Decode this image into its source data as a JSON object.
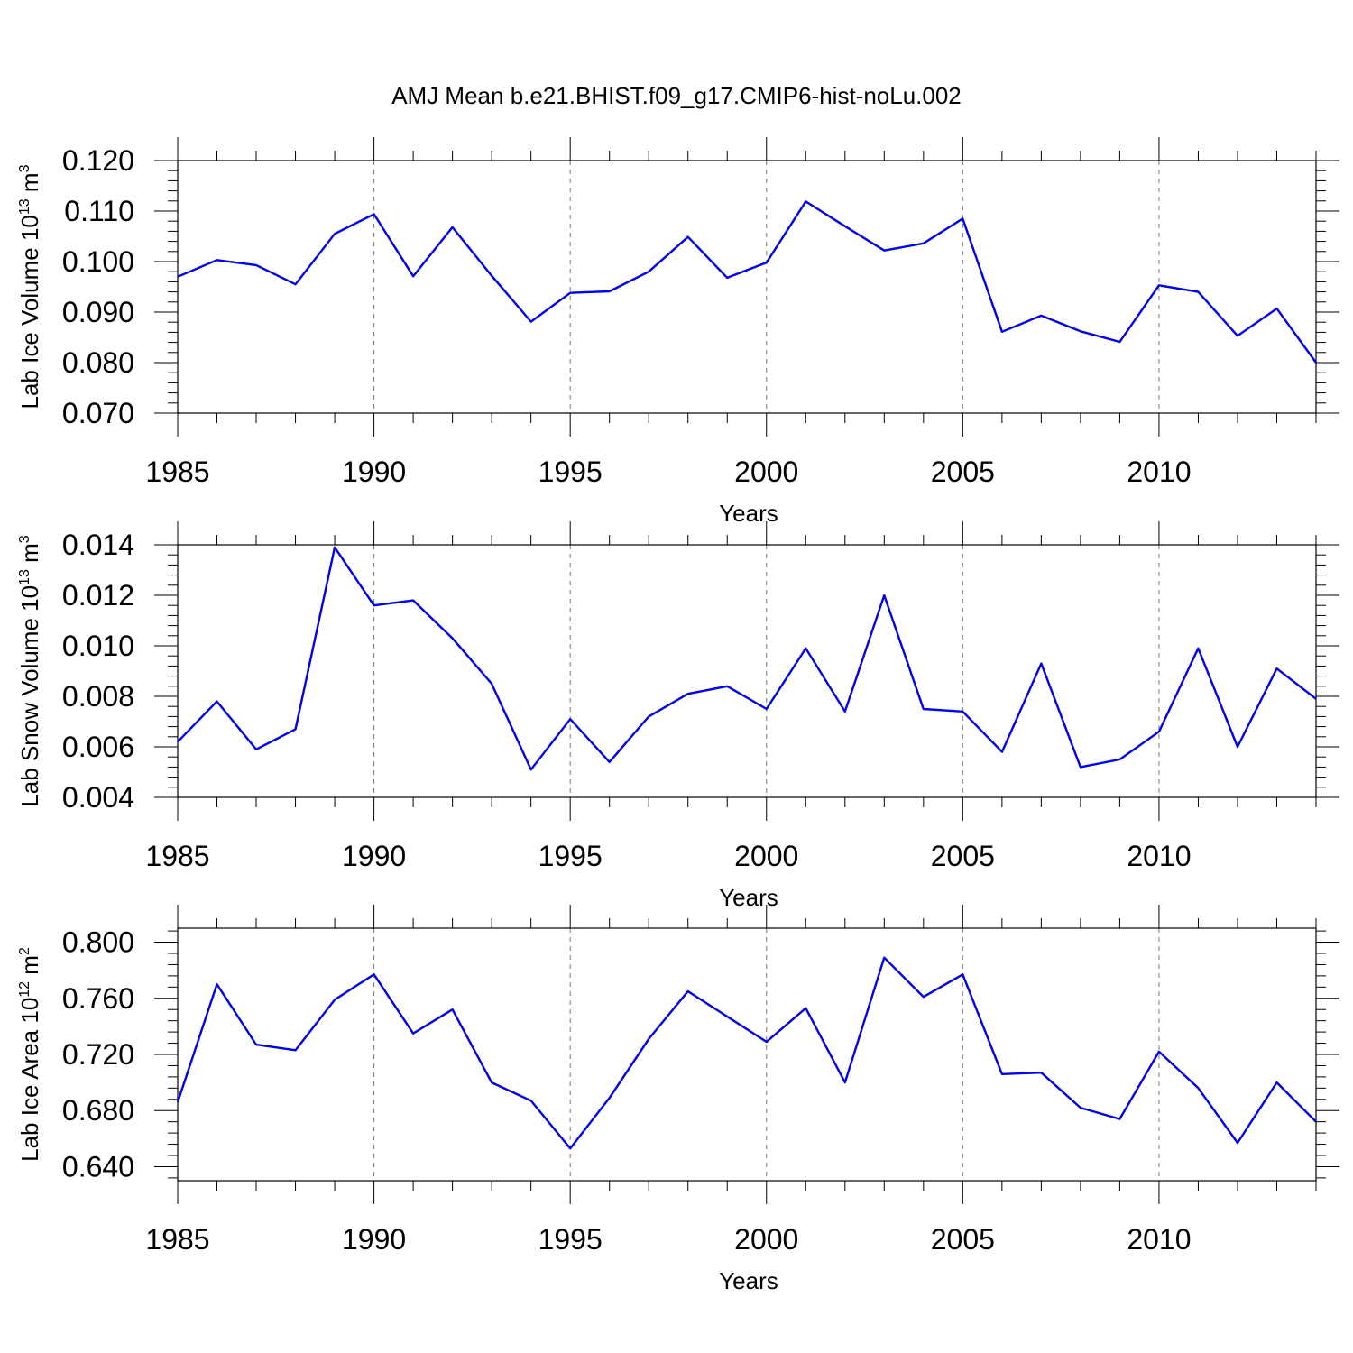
{
  "title": "AMJ Mean b.e21.BHIST.f09_g17.CMIP6-hist-noLu.002",
  "colors": {
    "series": "#0000ee",
    "frame": "#000000",
    "grid": "#777777"
  },
  "chart_data": [
    {
      "type": "line",
      "ylabel": "Lab Ice Volume 10",
      "ylabel_exp": "13",
      "ylabel_unit": " m",
      "ylabel_unit_exp": "3",
      "xlabel": "Years",
      "xlim": [
        1985,
        2014
      ],
      "ylim": [
        0.07,
        0.12
      ],
      "yticks": [
        "0.070",
        "0.080",
        "0.090",
        "0.100",
        "0.110",
        "0.120"
      ],
      "xticks": [
        "1985",
        "1990",
        "1995",
        "2000",
        "2005",
        "2010"
      ],
      "grid": "vertical dashed at major ticks",
      "x": [
        1985,
        1986,
        1987,
        1988,
        1989,
        1990,
        1991,
        1992,
        1993,
        1994,
        1995,
        1996,
        1997,
        1998,
        1999,
        2000,
        2001,
        2002,
        2003,
        2004,
        2005,
        2006,
        2007,
        2008,
        2009,
        2010,
        2011,
        2012,
        2013,
        2014
      ],
      "values": [
        0.097,
        0.1003,
        0.0993,
        0.0955,
        0.1055,
        0.1094,
        0.0971,
        0.1068,
        0.0972,
        0.0881,
        0.0938,
        0.0941,
        0.098,
        0.1049,
        0.0968,
        0.0998,
        0.1119,
        0.107,
        0.1022,
        0.1036,
        0.1085,
        0.0861,
        0.0893,
        0.0862,
        0.0841,
        0.0953,
        0.094,
        0.0853,
        0.0907,
        0.08
      ]
    },
    {
      "type": "line",
      "ylabel": "Lab Snow Volume 10",
      "ylabel_exp": "13",
      "ylabel_unit": " m",
      "ylabel_unit_exp": "3",
      "xlabel": "Years",
      "xlim": [
        1985,
        2014
      ],
      "ylim": [
        0.004,
        0.014
      ],
      "yticks": [
        "0.004",
        "0.006",
        "0.008",
        "0.010",
        "0.012",
        "0.014"
      ],
      "xticks": [
        "1985",
        "1990",
        "1995",
        "2000",
        "2005",
        "2010"
      ],
      "grid": "vertical dashed at major ticks",
      "x": [
        1985,
        1986,
        1987,
        1988,
        1989,
        1990,
        1991,
        1992,
        1993,
        1994,
        1995,
        1996,
        1997,
        1998,
        1999,
        2000,
        2001,
        2002,
        2003,
        2004,
        2005,
        2006,
        2007,
        2008,
        2009,
        2010,
        2011,
        2012,
        2013,
        2014
      ],
      "values": [
        0.0062,
        0.0078,
        0.0059,
        0.0067,
        0.0139,
        0.0116,
        0.0118,
        0.0103,
        0.0085,
        0.0051,
        0.0071,
        0.0054,
        0.0072,
        0.0081,
        0.0084,
        0.0075,
        0.0099,
        0.0074,
        0.012,
        0.0075,
        0.0074,
        0.0058,
        0.0093,
        0.0052,
        0.0055,
        0.0066,
        0.0099,
        0.006,
        0.0091,
        0.0079
      ]
    },
    {
      "type": "line",
      "ylabel": "Lab Ice Area 10",
      "ylabel_exp": "12",
      "ylabel_unit": " m",
      "ylabel_unit_exp": "2",
      "xlabel": "Years",
      "xlim": [
        1985,
        2014
      ],
      "ylim": [
        0.63,
        0.81
      ],
      "yticks": [
        "0.640",
        "0.680",
        "0.720",
        "0.760",
        "0.800"
      ],
      "yticks_values": [
        0.64,
        0.68,
        0.72,
        0.76,
        0.8
      ],
      "xticks": [
        "1985",
        "1990",
        "1995",
        "2000",
        "2005",
        "2010"
      ],
      "grid": "vertical dashed at major ticks",
      "x": [
        1985,
        1986,
        1987,
        1988,
        1989,
        1990,
        1991,
        1992,
        1993,
        1994,
        1995,
        1996,
        1997,
        1998,
        1999,
        2000,
        2001,
        2002,
        2003,
        2004,
        2005,
        2006,
        2007,
        2008,
        2009,
        2010,
        2011,
        2012,
        2013,
        2014
      ],
      "values": [
        0.686,
        0.77,
        0.727,
        0.723,
        0.759,
        0.777,
        0.735,
        0.752,
        0.7,
        0.687,
        0.653,
        0.689,
        0.731,
        0.765,
        0.747,
        0.729,
        0.753,
        0.7,
        0.789,
        0.761,
        0.777,
        0.706,
        0.707,
        0.682,
        0.674,
        0.722,
        0.696,
        0.657,
        0.7,
        0.672
      ]
    }
  ]
}
